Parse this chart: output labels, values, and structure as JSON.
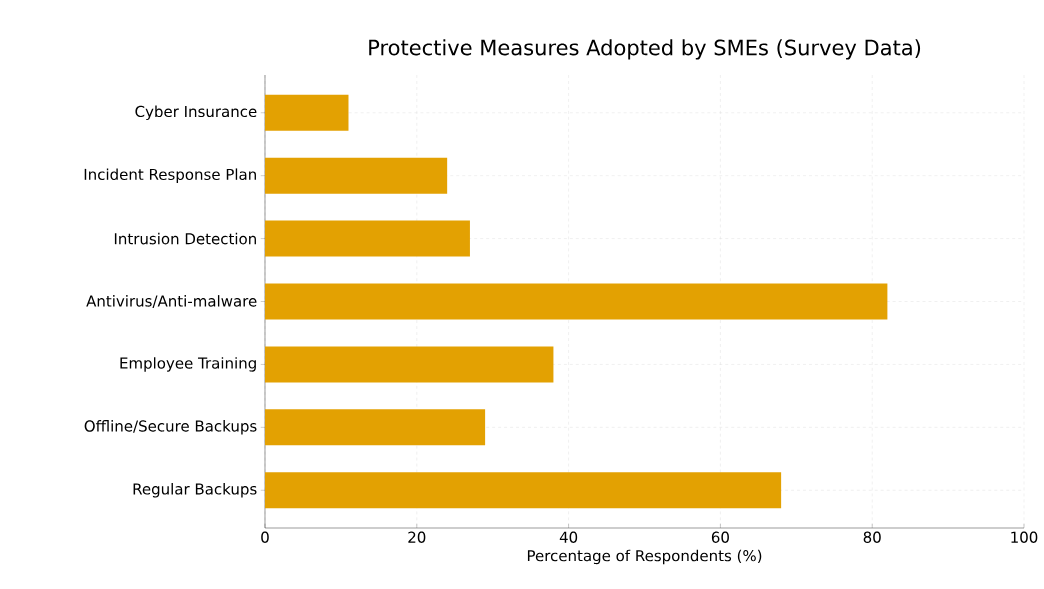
{
  "chart_data": {
    "type": "bar",
    "orientation": "horizontal",
    "title": "Protective Measures Adopted by SMEs (Survey Data)",
    "xlabel": "Percentage of Respondents (%)",
    "categories": [
      "Cyber Insurance",
      "Incident Response Plan",
      "Intrusion Detection",
      "Antivirus/Anti-malware",
      "Employee Training",
      "Offline/Secure Backups",
      "Regular Backups"
    ],
    "values": [
      11,
      24,
      27,
      82,
      38,
      29,
      68
    ],
    "color": "#e3a102",
    "xlim": [
      0,
      100
    ],
    "xticks": [
      0,
      20,
      40,
      60,
      80,
      100
    ],
    "grid": true
  }
}
